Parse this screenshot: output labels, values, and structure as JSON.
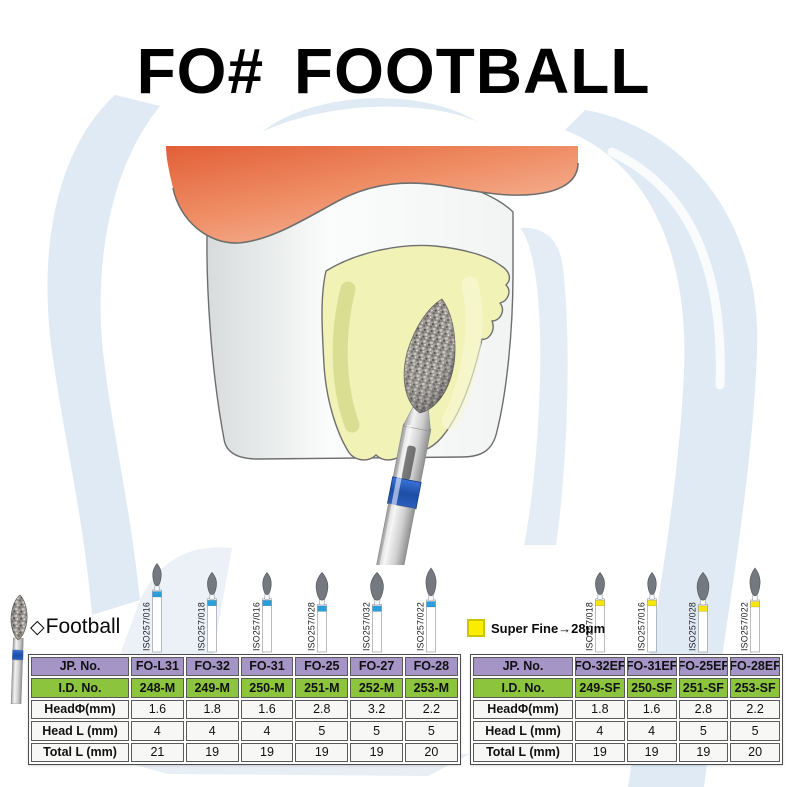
{
  "title": {
    "code": "FO#",
    "name": "FOOTBALL"
  },
  "left_section": {
    "label_symbol": "◇",
    "label": "Football",
    "band_color": "#2b9fdc",
    "table": {
      "row_labels": [
        "JP. No.",
        "I.D. No.",
        "HeadΦ(mm)",
        "Head L (mm)",
        "Total L (mm)"
      ],
      "columns": [
        {
          "iso": "ISO257/016",
          "jp": "FO-L31",
          "id": "248-M",
          "head_d": "1.6",
          "head_l": "4",
          "total_l": "21"
        },
        {
          "iso": "ISO257/018",
          "jp": "FO-32",
          "id": "249-M",
          "head_d": "1.8",
          "head_l": "4",
          "total_l": "19"
        },
        {
          "iso": "ISO257/016",
          "jp": "FO-31",
          "id": "250-M",
          "head_d": "1.6",
          "head_l": "4",
          "total_l": "19"
        },
        {
          "iso": "ISO257/028",
          "jp": "FO-25",
          "id": "251-M",
          "head_d": "2.8",
          "head_l": "5",
          "total_l": "19"
        },
        {
          "iso": "ISO257/032",
          "jp": "FO-27",
          "id": "252-M",
          "head_d": "3.2",
          "head_l": "5",
          "total_l": "19"
        },
        {
          "iso": "ISO257/022",
          "jp": "FO-28",
          "id": "253-M",
          "head_d": "2.2",
          "head_l": "5",
          "total_l": "20"
        }
      ]
    }
  },
  "right_section": {
    "legend_label": "Super Fine→28μm",
    "legend_swatch_color": "#f9ee00",
    "band_color": "#f6e60a",
    "table": {
      "row_labels": [
        "JP. No.",
        "I.D. No.",
        "HeadΦ(mm)",
        "Head L (mm)",
        "Total L (mm)"
      ],
      "columns": [
        {
          "iso": "ISO257/018",
          "jp": "FO-32EF",
          "id": "249-SF",
          "head_d": "1.8",
          "head_l": "4",
          "total_l": "19"
        },
        {
          "iso": "ISO257/016",
          "jp": "FO-31EF",
          "id": "250-SF",
          "head_d": "1.6",
          "head_l": "4",
          "total_l": "19"
        },
        {
          "iso": "ISO257/028",
          "jp": "FO-25EF",
          "id": "251-SF",
          "head_d": "2.8",
          "head_l": "5",
          "total_l": "19"
        },
        {
          "iso": "ISO257/022",
          "jp": "FO-28EF",
          "id": "253-SF",
          "head_d": "2.2",
          "head_l": "5",
          "total_l": "20"
        }
      ]
    }
  },
  "colors": {
    "header_purple": "#a595c6",
    "header_green": "#8cc43e",
    "data_row_bg": "#f7f7f5",
    "watermark_blue": "#dfeaf4",
    "gum_orange": "#e8744c",
    "lingual_yellow": "#f1f2b6",
    "medium_band_blue": "#2b9fdc",
    "super_fine_band_yellow": "#f6e60a"
  }
}
